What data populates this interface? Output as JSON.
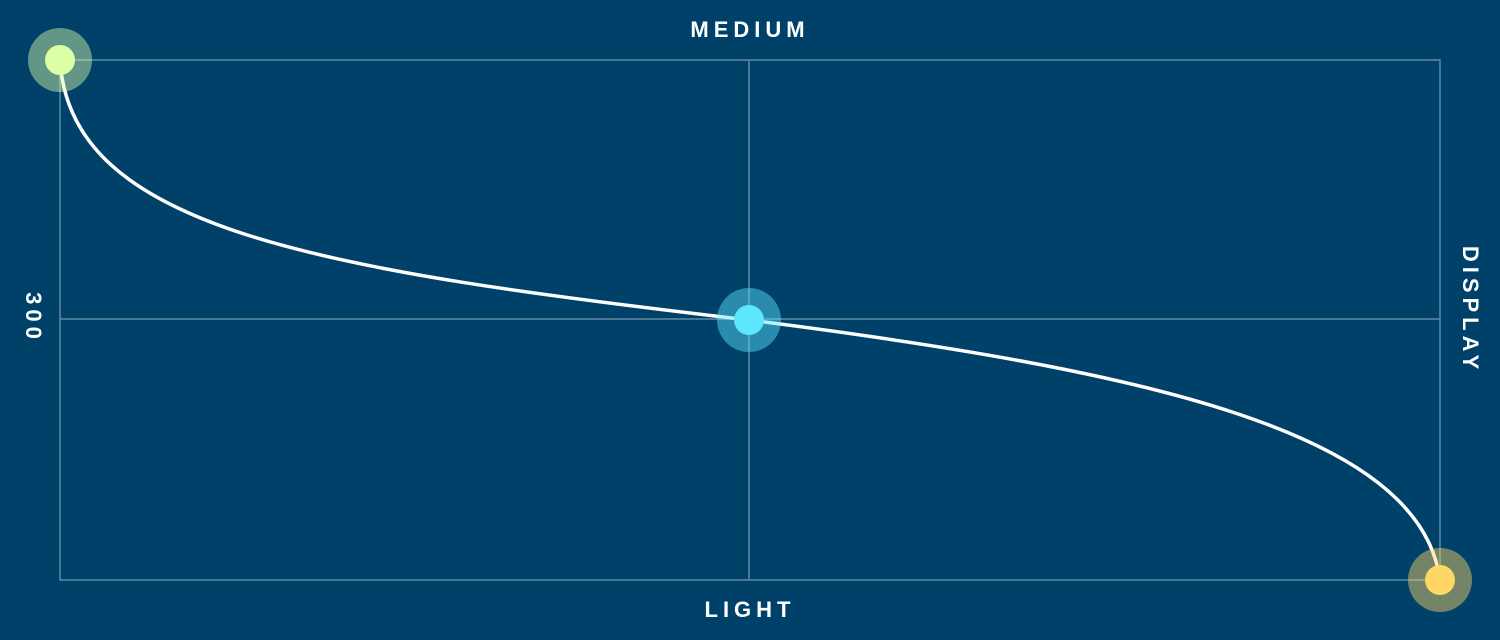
{
  "labels": {
    "top": "MEDIUM",
    "bottom": "LIGHT",
    "left": "300",
    "right": "DISPLAY"
  },
  "colors": {
    "background": "#00416a",
    "grid": "#5f8aa6",
    "curve": "#ffffff",
    "start_point": "#dcffa8",
    "mid_point": "#5ee6ff",
    "end_point": "#ffd766"
  }
}
